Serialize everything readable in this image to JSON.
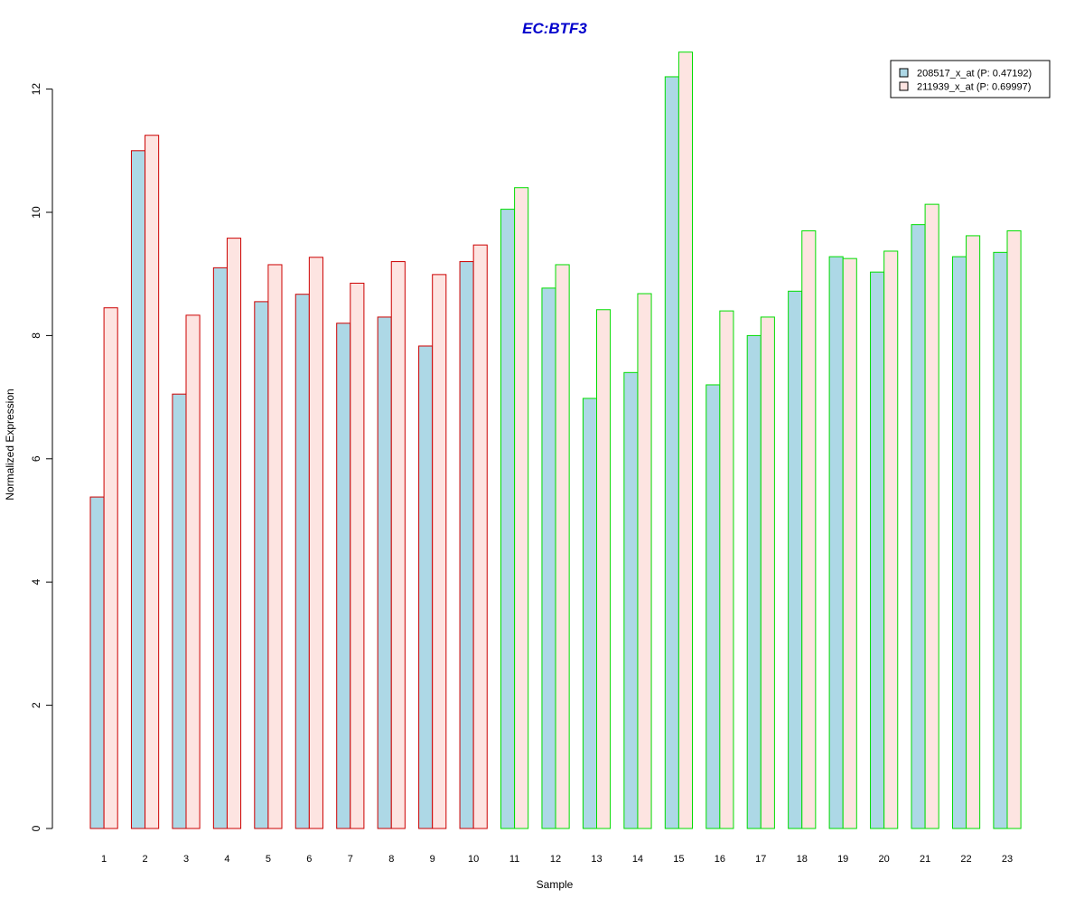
{
  "chart_data": {
    "type": "bar",
    "title": "EC:BTF3",
    "xlabel": "Sample",
    "ylabel": "Normalized Expression",
    "ylim": [
      0,
      12
    ],
    "yticks": [
      0,
      2,
      4,
      6,
      8,
      10,
      12
    ],
    "grid": false,
    "legend_position": "top-right",
    "categories": [
      "1",
      "2",
      "3",
      "4",
      "5",
      "6",
      "7",
      "8",
      "9",
      "10",
      "11",
      "12",
      "13",
      "14",
      "15",
      "16",
      "17",
      "18",
      "19",
      "20",
      "21",
      "22",
      "23"
    ],
    "group_outline": [
      "red",
      "red",
      "red",
      "red",
      "red",
      "red",
      "red",
      "red",
      "red",
      "red",
      "green",
      "green",
      "green",
      "green",
      "green",
      "green",
      "green",
      "green",
      "green",
      "green",
      "green",
      "green",
      "green"
    ],
    "series": [
      {
        "name": "208517_x_at (P: 0.47192)",
        "values": [
          5.38,
          11.0,
          7.05,
          9.1,
          8.55,
          8.67,
          8.2,
          8.3,
          7.83,
          9.2,
          10.05,
          8.77,
          6.98,
          7.4,
          12.2,
          7.2,
          8.0,
          8.72,
          9.28,
          9.03,
          9.8,
          9.28,
          9.35
        ]
      },
      {
        "name": "211939_x_at (P: 0.69997)",
        "values": [
          8.45,
          11.25,
          8.33,
          9.58,
          9.15,
          9.27,
          8.85,
          9.2,
          8.99,
          9.47,
          10.4,
          9.15,
          8.42,
          8.68,
          12.6,
          8.4,
          8.3,
          9.7,
          9.25,
          9.37,
          10.13,
          9.62,
          9.7
        ]
      }
    ],
    "colors": {
      "title": "#0000cc",
      "series_fills": [
        "#add8e6",
        "#fde4e1"
      ],
      "outline_red": "#cc0000",
      "outline_green": "#00dd00",
      "axis": "#000000"
    }
  }
}
